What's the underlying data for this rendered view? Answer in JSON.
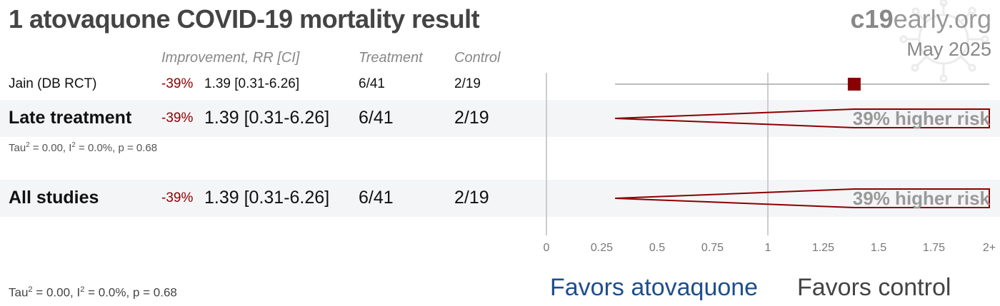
{
  "header": {
    "title": "1 atovaquone COVID-19 mortality result",
    "brand_bold": "c19",
    "brand_rest": "early.org",
    "date": "May 2025"
  },
  "columns": {
    "improvement": "Improvement, RR [CI]",
    "treatment": "Treatment",
    "control": "Control"
  },
  "rows": [
    {
      "label": "Jain (DB RCT)",
      "improvement": "-39%",
      "rr_ci": "1.39 [0.31-6.26]",
      "treatment": "6/41",
      "control": "2/19"
    }
  ],
  "late": {
    "label": "Late treatment",
    "improvement": "-39%",
    "rr_ci": "1.39 [0.31-6.26]",
    "treatment": "6/41",
    "control": "2/19",
    "stats_tau": "Tau",
    "stats_tau_sup": "2",
    "stats_tau_val": " = 0.00, I",
    "stats_i_sup": "2",
    "stats_rest": " = 0.0%, p = 0.68",
    "risk_label": "39% higher risk"
  },
  "all": {
    "label": "All studies",
    "improvement": "-39%",
    "rr_ci": "1.39 [0.31-6.26]",
    "treatment": "6/41",
    "control": "2/19",
    "risk_label": "39% higher risk"
  },
  "footer": {
    "stats_tau": "Tau",
    "stats_tau_sup": "2",
    "stats_tau_val": " = 0.00, I",
    "stats_i_sup": "2",
    "stats_rest": " = 0.0%, p = 0.68",
    "favors_left": "Favors atovaquone",
    "favors_right": "Favors control"
  },
  "chart_data": {
    "type": "forest",
    "x_ticks": [
      "0",
      "0.25",
      "0.5",
      "0.75",
      "1",
      "1.25",
      "1.5",
      "1.75",
      "2+"
    ],
    "x_tick_values": [
      0,
      0.25,
      0.5,
      0.75,
      1,
      1.25,
      1.5,
      1.75,
      2
    ],
    "xlim": [
      0,
      2
    ],
    "null_line": 1,
    "study": {
      "name": "Jain (DB RCT)",
      "rr": 1.39,
      "ci": [
        0.31,
        6.26
      ]
    },
    "pooled": [
      {
        "name": "Late treatment",
        "rr": 1.39,
        "ci": [
          0.31,
          6.26
        ]
      },
      {
        "name": "All studies",
        "rr": 1.39,
        "ci": [
          0.31,
          6.26
        ]
      }
    ],
    "colors": {
      "marker": "#8b0000",
      "diamond": "#8b0000",
      "axis": "#cccccc"
    }
  }
}
